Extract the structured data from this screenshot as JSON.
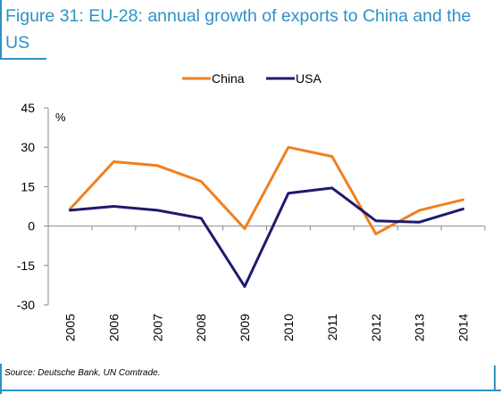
{
  "title": "Figure 31: EU-28: annual growth of exports to China and the US",
  "source": "Source: Deutsche Bank, UN Comtrade.",
  "chart_data": {
    "type": "line",
    "categories": [
      "2005",
      "2006",
      "2007",
      "2008",
      "2009",
      "2010",
      "2011",
      "2012",
      "2013",
      "2014"
    ],
    "series": [
      {
        "name": "China",
        "color": "#f07f1f",
        "values": [
          6.5,
          24.5,
          23,
          17,
          -1,
          30,
          26.5,
          -3,
          6,
          10
        ]
      },
      {
        "name": "USA",
        "color": "#1c1a6e",
        "values": [
          6,
          7.5,
          6,
          3,
          -23,
          12.5,
          14.5,
          2,
          1.5,
          6.5
        ]
      }
    ],
    "ylabel": "%",
    "ylim": [
      -30,
      45
    ],
    "yticks": [
      "45",
      "30",
      "15",
      "0",
      "-15",
      "-30"
    ],
    "ytick_values": [
      45,
      30,
      15,
      0,
      -15,
      -30
    ],
    "legend_position": "top-center",
    "grid": false
  }
}
